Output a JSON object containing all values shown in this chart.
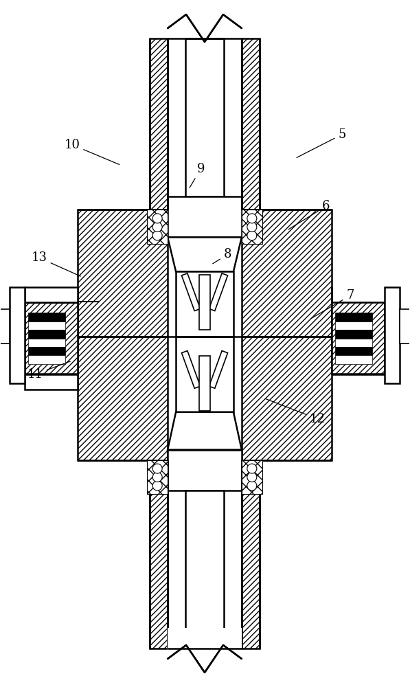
{
  "bg_color": "#ffffff",
  "line_color": "#000000",
  "fig_width": 5.97,
  "fig_height": 10.0,
  "label_fontsize": 13,
  "labels": {
    "5": [
      0.835,
      0.805,
      0.72,
      0.77
    ],
    "6": [
      0.795,
      0.7,
      0.7,
      0.665
    ],
    "7": [
      0.855,
      0.57,
      0.755,
      0.535
    ],
    "8": [
      0.555,
      0.63,
      0.515,
      0.615
    ],
    "9": [
      0.49,
      0.755,
      0.46,
      0.725
    ],
    "10": [
      0.175,
      0.79,
      0.295,
      0.76
    ],
    "11": [
      0.085,
      0.455,
      0.175,
      0.475
    ],
    "12": [
      0.775,
      0.39,
      0.645,
      0.42
    ],
    "13": [
      0.095,
      0.625,
      0.2,
      0.597
    ]
  }
}
